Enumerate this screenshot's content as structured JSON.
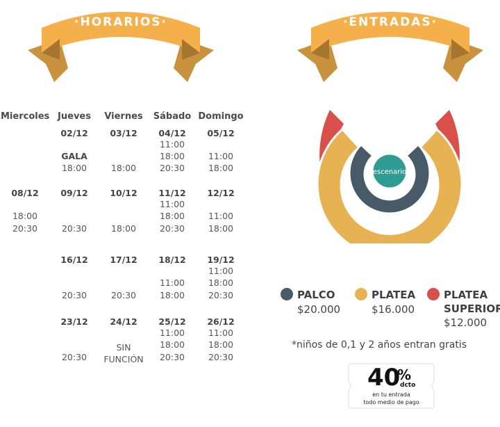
{
  "ribbons": {
    "left_title": "·HORARIOS·",
    "right_title": "·ENTRADAS·"
  },
  "schedule": {
    "headers": [
      "Miercoles",
      "Jueves",
      "Viernes",
      "Sábado",
      "Domingo"
    ],
    "rows": [
      [
        [
          "",
          ""
        ],
        [
          "02/12",
          "GALA",
          "18:00"
        ],
        [
          "03/12",
          "18:00"
        ],
        [
          "04/12",
          "11:00",
          "18:00",
          "20:30"
        ],
        [
          "05/12",
          "11:00",
          "18:00"
        ]
      ],
      [
        [
          "08/12",
          "18:00",
          "20:30"
        ],
        [
          "09/12",
          "20:30"
        ],
        [
          "10/12",
          "18:00"
        ],
        [
          "11/12",
          "11:00",
          "18:00",
          "20:30"
        ],
        [
          "12/12",
          "11:00",
          "18:00"
        ]
      ],
      [
        [
          "",
          ""
        ],
        [
          "16/12",
          "20:30"
        ],
        [
          "17/12",
          "20:30"
        ],
        [
          "18/12",
          "11:00",
          "18:00"
        ],
        [
          "19/12",
          "11:00",
          "18:00",
          "20:30"
        ]
      ],
      [
        [
          "",
          ""
        ],
        [
          "23/12",
          "20:30"
        ],
        [
          "24/12",
          "SIN",
          "FUNCIÓN"
        ],
        [
          "25/12",
          "11:00",
          "18:00",
          "20:30"
        ],
        [
          "26/12",
          "11:00",
          "18:00",
          "20:30"
        ]
      ]
    ]
  },
  "venue": {
    "stage_label": "escenario",
    "colors": {
      "palco": "#465a67",
      "platea": "#e6b252",
      "platea_superior": "#d9504a",
      "stage": "#2f9b92"
    }
  },
  "legend": [
    {
      "label": "PALCO",
      "price": "$20.000",
      "color": "#465a67"
    },
    {
      "label": "PLATEA",
      "price": "$16.000",
      "color": "#e6b252"
    },
    {
      "label_line1": "PLATEA",
      "label_line2": "SUPERIOR",
      "price": "$12.000",
      "color": "#d9504a"
    }
  ],
  "note": "*niños de 0,1 y 2 años entran gratis",
  "coupon": {
    "percent": "40",
    "percent_sign": "%",
    "unit": "dcto",
    "line1": "en tu entrada",
    "line2": "todo medio de pago"
  }
}
